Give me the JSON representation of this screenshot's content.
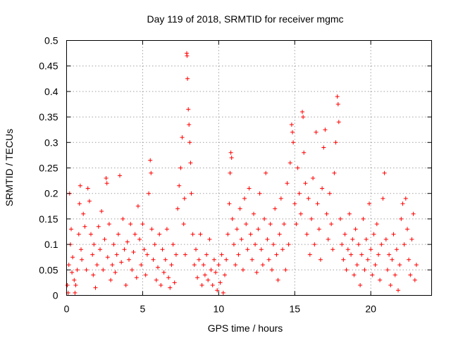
{
  "chart_data": {
    "type": "scatter",
    "title": "Day 119 of 2018, SRMTID for receiver mgmc",
    "xlabel": "GPS time / hours",
    "ylabel": "SRMTID / TECUs",
    "xlim": [
      0,
      24
    ],
    "ylim": [
      0,
      0.5
    ],
    "xticks": [
      0,
      5,
      10,
      15,
      20
    ],
    "xtick_labels": [
      "0",
      "5",
      "10",
      "15",
      "20"
    ],
    "yticks": [
      0,
      0.05,
      0.1,
      0.15,
      0.2,
      0.25,
      0.3,
      0.35,
      0.4,
      0.45,
      0.5
    ],
    "ytick_labels": [
      "0",
      "0.05",
      "0.1",
      "0.15",
      "0.2",
      "0.25",
      "0.3",
      "0.35",
      "0.4",
      "0.45",
      "0.5"
    ],
    "grid": true,
    "marker": "+",
    "color": "#ff0000",
    "series": [
      {
        "name": "SRMTID",
        "points": [
          [
            0.05,
            0.02
          ],
          [
            0.1,
            0.005
          ],
          [
            0.15,
            0.06
          ],
          [
            0.2,
            0.2
          ],
          [
            0.25,
            0.1
          ],
          [
            0.3,
            0.13
          ],
          [
            0.35,
            0.045
          ],
          [
            0.4,
            0.075
          ],
          [
            0.5,
            0.03
          ],
          [
            0.55,
            0.005
          ],
          [
            0.6,
            0.02
          ],
          [
            0.7,
            0.05
          ],
          [
            0.8,
            0.12
          ],
          [
            0.85,
            0.18
          ],
          [
            0.9,
            0.215
          ],
          [
            0.95,
            0.09
          ],
          [
            1.0,
            0.07
          ],
          [
            1.1,
            0.16
          ],
          [
            1.2,
            0.135
          ],
          [
            1.3,
            0.05
          ],
          [
            1.4,
            0.21
          ],
          [
            1.5,
            0.185
          ],
          [
            1.6,
            0.12
          ],
          [
            1.7,
            0.08
          ],
          [
            1.75,
            0.04
          ],
          [
            1.8,
            0.1
          ],
          [
            1.9,
            0.015
          ],
          [
            2.0,
            0.06
          ],
          [
            2.1,
            0.135
          ],
          [
            2.2,
            0.09
          ],
          [
            2.3,
            0.165
          ],
          [
            2.4,
            0.05
          ],
          [
            2.5,
            0.11
          ],
          [
            2.6,
            0.23
          ],
          [
            2.65,
            0.22
          ],
          [
            2.7,
            0.075
          ],
          [
            2.8,
            0.14
          ],
          [
            2.9,
            0.03
          ],
          [
            3.0,
            0.06
          ],
          [
            3.1,
            0.1
          ],
          [
            3.2,
            0.045
          ],
          [
            3.3,
            0.08
          ],
          [
            3.4,
            0.12
          ],
          [
            3.5,
            0.235
          ],
          [
            3.6,
            0.065
          ],
          [
            3.7,
            0.15
          ],
          [
            3.8,
            0.09
          ],
          [
            3.9,
            0.02
          ],
          [
            4.0,
            0.105
          ],
          [
            4.1,
            0.07
          ],
          [
            4.2,
            0.14
          ],
          [
            4.3,
            0.05
          ],
          [
            4.4,
            0.085
          ],
          [
            4.5,
            0.12
          ],
          [
            4.6,
            0.035
          ],
          [
            4.7,
            0.175
          ],
          [
            4.8,
            0.11
          ],
          [
            4.9,
            0.06
          ],
          [
            5.0,
            0.14
          ],
          [
            5.1,
            0.09
          ],
          [
            5.2,
            0.04
          ],
          [
            5.3,
            0.08
          ],
          [
            5.4,
            0.2
          ],
          [
            5.5,
            0.265
          ],
          [
            5.55,
            0.24
          ],
          [
            5.6,
            0.13
          ],
          [
            5.7,
            0.07
          ],
          [
            5.8,
            0.1
          ],
          [
            5.9,
            0.03
          ],
          [
            6.0,
            0.055
          ],
          [
            6.1,
            0.12
          ],
          [
            6.2,
            0.02
          ],
          [
            6.3,
            0.09
          ],
          [
            6.4,
            0.045
          ],
          [
            6.5,
            0.07
          ],
          [
            6.6,
            0.13
          ],
          [
            6.7,
            0.035
          ],
          [
            6.8,
            0.015
          ],
          [
            6.9,
            0.06
          ],
          [
            7.0,
            0.1
          ],
          [
            7.1,
            0.025
          ],
          [
            7.2,
            0.08
          ],
          [
            7.3,
            0.17
          ],
          [
            7.4,
            0.215
          ],
          [
            7.5,
            0.25
          ],
          [
            7.6,
            0.31
          ],
          [
            7.7,
            0.14
          ],
          [
            7.75,
            0.19
          ],
          [
            7.8,
            0.08
          ],
          [
            7.9,
            0.475
          ],
          [
            7.92,
            0.47
          ],
          [
            7.95,
            0.425
          ],
          [
            8.0,
            0.365
          ],
          [
            8.05,
            0.335
          ],
          [
            8.1,
            0.3
          ],
          [
            8.15,
            0.26
          ],
          [
            8.2,
            0.2
          ],
          [
            8.3,
            0.12
          ],
          [
            8.4,
            0.06
          ],
          [
            8.5,
            0.09
          ],
          [
            8.6,
            0.035
          ],
          [
            8.7,
            0.07
          ],
          [
            8.8,
            0.12
          ],
          [
            8.9,
            0.02
          ],
          [
            9.0,
            0.06
          ],
          [
            9.1,
            0.04
          ],
          [
            9.2,
            0.08
          ],
          [
            9.3,
            0.03
          ],
          [
            9.4,
            0.11
          ],
          [
            9.5,
            0.05
          ],
          [
            9.6,
            0.02
          ],
          [
            9.7,
            0.07
          ],
          [
            9.8,
            0.045
          ],
          [
            9.9,
            0.01
          ],
          [
            10.0,
            0.06
          ],
          [
            10.1,
            0.025
          ],
          [
            10.2,
            0.08
          ],
          [
            10.3,
            0.005
          ],
          [
            10.4,
            0.04
          ],
          [
            10.5,
            0.07
          ],
          [
            10.6,
            0.12
          ],
          [
            10.7,
            0.18
          ],
          [
            10.75,
            0.24
          ],
          [
            10.8,
            0.28
          ],
          [
            10.85,
            0.27
          ],
          [
            10.9,
            0.15
          ],
          [
            11.0,
            0.1
          ],
          [
            11.1,
            0.06
          ],
          [
            11.2,
            0.13
          ],
          [
            11.3,
            0.08
          ],
          [
            11.4,
            0.17
          ],
          [
            11.5,
            0.11
          ],
          [
            11.6,
            0.05
          ],
          [
            11.7,
            0.19
          ],
          [
            11.8,
            0.14
          ],
          [
            11.9,
            0.09
          ],
          [
            12.0,
            0.21
          ],
          [
            12.1,
            0.12
          ],
          [
            12.2,
            0.07
          ],
          [
            12.3,
            0.16
          ],
          [
            12.4,
            0.1
          ],
          [
            12.5,
            0.045
          ],
          [
            12.6,
            0.13
          ],
          [
            12.7,
            0.2
          ],
          [
            12.8,
            0.09
          ],
          [
            12.9,
            0.06
          ],
          [
            13.0,
            0.15
          ],
          [
            13.1,
            0.24
          ],
          [
            13.2,
            0.11
          ],
          [
            13.3,
            0.07
          ],
          [
            13.4,
            0.14
          ],
          [
            13.5,
            0.05
          ],
          [
            13.6,
            0.1
          ],
          [
            13.7,
            0.17
          ],
          [
            13.8,
            0.08
          ],
          [
            13.9,
            0.03
          ],
          [
            14.0,
            0.12
          ],
          [
            14.1,
            0.19
          ],
          [
            14.2,
            0.09
          ],
          [
            14.3,
            0.14
          ],
          [
            14.4,
            0.05
          ],
          [
            14.5,
            0.22
          ],
          [
            14.6,
            0.1
          ],
          [
            14.7,
            0.26
          ],
          [
            14.8,
            0.335
          ],
          [
            14.85,
            0.32
          ],
          [
            14.9,
            0.3
          ],
          [
            15.0,
            0.18
          ],
          [
            15.1,
            0.14
          ],
          [
            15.2,
            0.25
          ],
          [
            15.3,
            0.2
          ],
          [
            15.4,
            0.16
          ],
          [
            15.5,
            0.36
          ],
          [
            15.55,
            0.35
          ],
          [
            15.6,
            0.28
          ],
          [
            15.7,
            0.22
          ],
          [
            15.8,
            0.12
          ],
          [
            15.9,
            0.19
          ],
          [
            16.0,
            0.08
          ],
          [
            16.1,
            0.15
          ],
          [
            16.2,
            0.23
          ],
          [
            16.3,
            0.1
          ],
          [
            16.4,
            0.32
          ],
          [
            16.5,
            0.18
          ],
          [
            16.6,
            0.13
          ],
          [
            16.7,
            0.07
          ],
          [
            16.8,
            0.21
          ],
          [
            16.9,
            0.29
          ],
          [
            17.0,
            0.325
          ],
          [
            17.1,
            0.16
          ],
          [
            17.2,
            0.11
          ],
          [
            17.3,
            0.2
          ],
          [
            17.4,
            0.14
          ],
          [
            17.5,
            0.09
          ],
          [
            17.6,
            0.24
          ],
          [
            17.7,
            0.3
          ],
          [
            17.8,
            0.39
          ],
          [
            17.85,
            0.375
          ],
          [
            17.9,
            0.34
          ],
          [
            18.0,
            0.15
          ],
          [
            18.1,
            0.1
          ],
          [
            18.2,
            0.07
          ],
          [
            18.3,
            0.12
          ],
          [
            18.4,
            0.05
          ],
          [
            18.5,
            0.09
          ],
          [
            18.6,
            0.16
          ],
          [
            18.7,
            0.08
          ],
          [
            18.8,
            0.11
          ],
          [
            18.9,
            0.04
          ],
          [
            19.0,
            0.13
          ],
          [
            19.1,
            0.06
          ],
          [
            19.2,
            0.1
          ],
          [
            19.3,
            0.02
          ],
          [
            19.4,
            0.08
          ],
          [
            19.5,
            0.15
          ],
          [
            19.6,
            0.05
          ],
          [
            19.7,
            0.11
          ],
          [
            19.8,
            0.07
          ],
          [
            19.9,
            0.18
          ],
          [
            20.0,
            0.09
          ],
          [
            20.1,
            0.04
          ],
          [
            20.2,
            0.12
          ],
          [
            20.3,
            0.06
          ],
          [
            20.4,
            0.14
          ],
          [
            20.5,
            0.08
          ],
          [
            20.6,
            0.03
          ],
          [
            20.7,
            0.1
          ],
          [
            20.8,
            0.19
          ],
          [
            20.9,
            0.24
          ],
          [
            21.0,
            0.11
          ],
          [
            21.1,
            0.05
          ],
          [
            21.2,
            0.08
          ],
          [
            21.3,
            0.02
          ],
          [
            21.4,
            0.07
          ],
          [
            21.5,
            0.12
          ],
          [
            21.6,
            0.04
          ],
          [
            21.7,
            0.09
          ],
          [
            21.8,
            0.01
          ],
          [
            21.9,
            0.06
          ],
          [
            22.0,
            0.15
          ],
          [
            22.1,
            0.18
          ],
          [
            22.2,
            0.1
          ],
          [
            22.3,
            0.19
          ],
          [
            22.4,
            0.13
          ],
          [
            22.5,
            0.07
          ],
          [
            22.6,
            0.04
          ],
          [
            22.7,
            0.11
          ],
          [
            22.8,
            0.16
          ],
          [
            22.9,
            0.03
          ],
          [
            23.0,
            0.06
          ]
        ]
      }
    ]
  }
}
